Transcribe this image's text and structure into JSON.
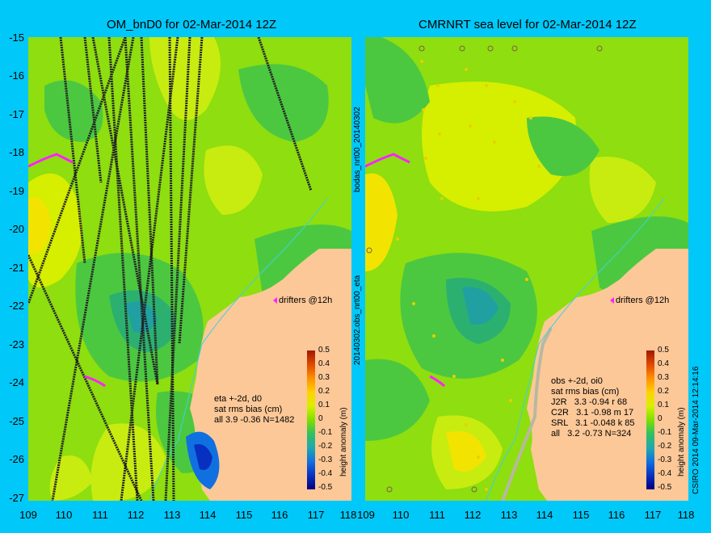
{
  "left": {
    "title": "OM_bnD0 for 02-Mar-2014 12Z",
    "legend": [
      "eta +-2d, d0",
      "sat rms bias (cm)",
      "all 3.9 -0.36 N=1482"
    ],
    "drifters": "drifters @12h",
    "colorbar_label": "height anomaly (m)"
  },
  "right": {
    "title": "CMRNRT sea level  for 02-Mar-2014 12Z",
    "legend": [
      "obs +-2d, oi0",
      "sat rms bias (cm)",
      "J2R   3.3 -0.94 r 68",
      "C2R   3.1 -0.98 m 17",
      "SRL   3.1 -0.048 k 85",
      "all   3.2 -0.73 N=324"
    ],
    "drifters": "drifters @12h",
    "colorbar_label": "height anomaly (m)"
  },
  "side_labels": {
    "bodas": "bodas_nrt00_20140302",
    "obs": "20140302.obs_nrt00_eta",
    "credit": "CSIRO 2014   09-Mar-2014 12:14:16"
  },
  "axes": {
    "lat_ticks": [
      "-15",
      "-16",
      "-17",
      "-18",
      "-19",
      "-20",
      "-21",
      "-22",
      "-23",
      "-24",
      "-25",
      "-26",
      "-27"
    ],
    "lon_ticks": [
      "109",
      "110",
      "111",
      "112",
      "113",
      "114",
      "115",
      "116",
      "117",
      "118"
    ]
  },
  "colorbar": {
    "ticks": [
      "0.5",
      "0.4",
      "0.3",
      "0.2",
      "0.1",
      "0",
      "-0.1",
      "-0.2",
      "-0.3",
      "-0.4",
      "-0.5"
    ],
    "colors": [
      "#a01800",
      "#e04800",
      "#ff9000",
      "#ffd200",
      "#d8f000",
      "#7ee000",
      "#30c060",
      "#20a8b0",
      "#1070e0",
      "#0830c0",
      "#000080"
    ]
  }
}
